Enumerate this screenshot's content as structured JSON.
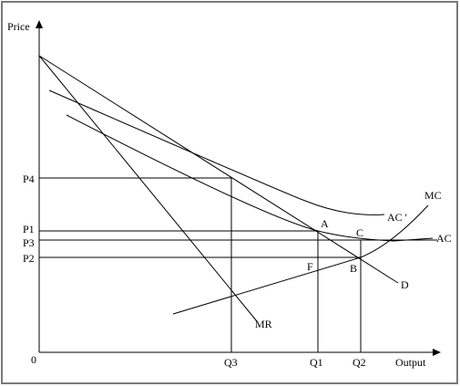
{
  "axes": {
    "y_label": "Price",
    "x_label": "Output",
    "origin_label": "0"
  },
  "price_labels": [
    "P4",
    "P1",
    "P3",
    "P2"
  ],
  "quantity_labels": [
    "Q3",
    "Q1",
    "Q2"
  ],
  "curve_labels": {
    "mc": "MC",
    "ac_prime": "AC '",
    "ac": "AC",
    "demand": "D",
    "mr": "MR"
  },
  "point_labels": {
    "a": "A",
    "b": "B",
    "c": "C",
    "f": "F"
  },
  "colors": {
    "line": "#000000",
    "background": "#ffffff",
    "frame": "#7a7a7a"
  }
}
